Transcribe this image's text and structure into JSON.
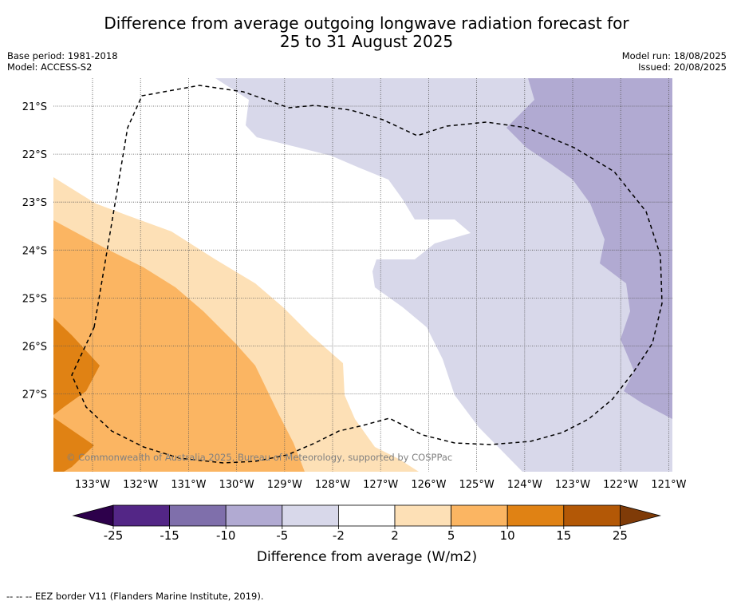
{
  "title_line1": "Difference from average outgoing longwave radiation forecast for",
  "title_line2": "25 to 31 August 2025",
  "base_period": "Base period: 1981-2018",
  "model": "Model: ACCESS-S2",
  "model_run": "Model run: 18/08/2025",
  "issued": "Issued: 20/08/2025",
  "copyright": "© Commonwealth of Australia 2025, Bureau of Meteorology, supported by COSPPac",
  "lon_labels": [
    "133°W",
    "132°W",
    "131°W",
    "130°W",
    "129°W",
    "128°W",
    "127°W",
    "126°W",
    "125°W",
    "124°W",
    "123°W",
    "122°W",
    "121°W"
  ],
  "lat_labels": [
    "21°S",
    "22°S",
    "23°S",
    "24°S",
    "25°S",
    "26°S",
    "27°S"
  ],
  "colorbar": {
    "title": "Difference from average (W/m2)",
    "ticks": [
      "-25",
      "-15",
      "-10",
      "-5",
      "-2",
      "2",
      "5",
      "10",
      "15",
      "25"
    ],
    "colors": [
      "#532686",
      "#7f6fab",
      "#b1aad2",
      "#d8d8ea",
      "#ffffff",
      "#fde0b6",
      "#fbb562",
      "#e08214",
      "#b35806"
    ],
    "under_color": "#2d004b",
    "over_color": "#7f3b08"
  },
  "footnote": "-- -- -- EEZ border V11 (Flanders Marine Institute, 2019)."
}
